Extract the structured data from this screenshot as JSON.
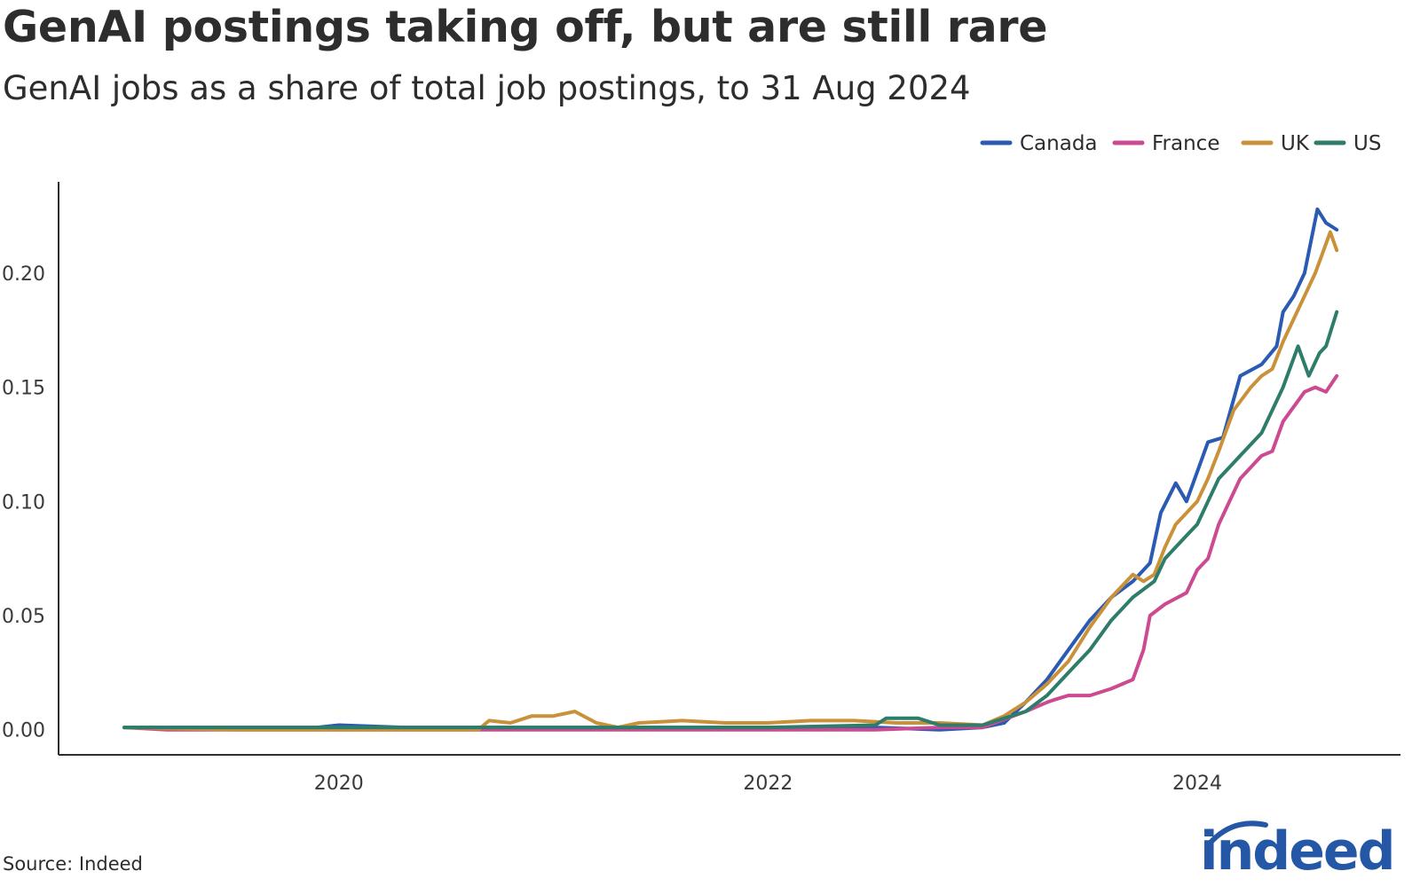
{
  "title": "GenAI postings taking off, but are still rare",
  "subtitle": "GenAI jobs as a share of total job postings, to 31 Aug 2024",
  "source": "Source: Indeed",
  "logo_text": "indeed",
  "colors": {
    "Canada": "#2a5ab1",
    "France": "#cc4a91",
    "UK": "#c9923a",
    "US": "#2e7d6a",
    "axis": "#2d2d2d",
    "brand": "#2557a7"
  },
  "chart_data": {
    "type": "line",
    "title": "GenAI postings taking off, but are still rare",
    "subtitle": "GenAI jobs as a share of total job postings, to 31 Aug 2024",
    "xlabel": "",
    "ylabel": "",
    "x_range": [
      2019.0,
      2024.67
    ],
    "ylim": [
      -0.011,
      0.24
    ],
    "y_ticks": [
      0.0,
      0.05,
      0.1,
      0.15,
      0.2
    ],
    "y_tick_labels": [
      "0.00",
      "0.05",
      "0.10",
      "0.15",
      "0.20"
    ],
    "x_ticks": [
      2020,
      2022,
      2024
    ],
    "x_tick_labels": [
      "2020",
      "2022",
      "2024"
    ],
    "legend_position": "top-right",
    "grid": false,
    "series": [
      {
        "name": "Canada",
        "points": [
          [
            2019.0,
            0.001
          ],
          [
            2019.5,
            0.001
          ],
          [
            2019.9,
            0.001
          ],
          [
            2020.0,
            0.002
          ],
          [
            2020.3,
            0.001
          ],
          [
            2020.6,
            0.001
          ],
          [
            2021.0,
            0.001
          ],
          [
            2021.5,
            0.001
          ],
          [
            2022.0,
            0.001
          ],
          [
            2022.5,
            0.001
          ],
          [
            2022.8,
            0.0
          ],
          [
            2023.0,
            0.001
          ],
          [
            2023.1,
            0.003
          ],
          [
            2023.2,
            0.012
          ],
          [
            2023.3,
            0.022
          ],
          [
            2023.4,
            0.035
          ],
          [
            2023.5,
            0.048
          ],
          [
            2023.6,
            0.058
          ],
          [
            2023.7,
            0.065
          ],
          [
            2023.78,
            0.073
          ],
          [
            2023.83,
            0.095
          ],
          [
            2023.9,
            0.108
          ],
          [
            2023.95,
            0.1
          ],
          [
            2024.0,
            0.113
          ],
          [
            2024.05,
            0.126
          ],
          [
            2024.12,
            0.128
          ],
          [
            2024.2,
            0.155
          ],
          [
            2024.3,
            0.16
          ],
          [
            2024.37,
            0.168
          ],
          [
            2024.4,
            0.183
          ],
          [
            2024.45,
            0.19
          ],
          [
            2024.5,
            0.2
          ],
          [
            2024.56,
            0.228
          ],
          [
            2024.6,
            0.222
          ],
          [
            2024.65,
            0.219
          ]
        ]
      },
      {
        "name": "France",
        "points": [
          [
            2019.0,
            0.001
          ],
          [
            2019.2,
            0.0
          ],
          [
            2019.5,
            0.0
          ],
          [
            2020.0,
            0.0
          ],
          [
            2020.5,
            0.0
          ],
          [
            2021.0,
            0.0
          ],
          [
            2021.5,
            0.0
          ],
          [
            2022.0,
            0.0
          ],
          [
            2022.5,
            0.0
          ],
          [
            2022.8,
            0.001
          ],
          [
            2023.0,
            0.001
          ],
          [
            2023.2,
            0.008
          ],
          [
            2023.3,
            0.012
          ],
          [
            2023.33,
            0.013
          ],
          [
            2023.4,
            0.015
          ],
          [
            2023.5,
            0.015
          ],
          [
            2023.6,
            0.018
          ],
          [
            2023.7,
            0.022
          ],
          [
            2023.75,
            0.035
          ],
          [
            2023.78,
            0.05
          ],
          [
            2023.85,
            0.055
          ],
          [
            2023.95,
            0.06
          ],
          [
            2024.0,
            0.07
          ],
          [
            2024.05,
            0.075
          ],
          [
            2024.1,
            0.09
          ],
          [
            2024.2,
            0.11
          ],
          [
            2024.3,
            0.12
          ],
          [
            2024.35,
            0.122
          ],
          [
            2024.4,
            0.135
          ],
          [
            2024.5,
            0.148
          ],
          [
            2024.55,
            0.15
          ],
          [
            2024.6,
            0.148
          ],
          [
            2024.65,
            0.155
          ]
        ]
      },
      {
        "name": "UK",
        "points": [
          [
            2019.0,
            0.001
          ],
          [
            2019.5,
            0.0
          ],
          [
            2020.0,
            0.0
          ],
          [
            2020.4,
            0.0
          ],
          [
            2020.65,
            0.0
          ],
          [
            2020.7,
            0.004
          ],
          [
            2020.8,
            0.003
          ],
          [
            2020.9,
            0.006
          ],
          [
            2021.0,
            0.006
          ],
          [
            2021.1,
            0.008
          ],
          [
            2021.2,
            0.003
          ],
          [
            2021.3,
            0.001
          ],
          [
            2021.4,
            0.003
          ],
          [
            2021.6,
            0.004
          ],
          [
            2021.8,
            0.003
          ],
          [
            2022.0,
            0.003
          ],
          [
            2022.2,
            0.004
          ],
          [
            2022.4,
            0.004
          ],
          [
            2022.6,
            0.003
          ],
          [
            2022.8,
            0.003
          ],
          [
            2023.0,
            0.002
          ],
          [
            2023.1,
            0.006
          ],
          [
            2023.2,
            0.012
          ],
          [
            2023.3,
            0.02
          ],
          [
            2023.4,
            0.03
          ],
          [
            2023.5,
            0.045
          ],
          [
            2023.6,
            0.058
          ],
          [
            2023.7,
            0.068
          ],
          [
            2023.75,
            0.065
          ],
          [
            2023.8,
            0.068
          ],
          [
            2023.85,
            0.08
          ],
          [
            2023.9,
            0.09
          ],
          [
            2023.95,
            0.095
          ],
          [
            2024.0,
            0.1
          ],
          [
            2024.05,
            0.11
          ],
          [
            2024.1,
            0.122
          ],
          [
            2024.17,
            0.14
          ],
          [
            2024.25,
            0.15
          ],
          [
            2024.3,
            0.155
          ],
          [
            2024.35,
            0.158
          ],
          [
            2024.4,
            0.17
          ],
          [
            2024.45,
            0.18
          ],
          [
            2024.5,
            0.19
          ],
          [
            2024.55,
            0.2
          ],
          [
            2024.62,
            0.218
          ],
          [
            2024.65,
            0.21
          ]
        ]
      },
      {
        "name": "US",
        "points": [
          [
            2019.0,
            0.001
          ],
          [
            2019.5,
            0.001
          ],
          [
            2020.0,
            0.001
          ],
          [
            2020.5,
            0.001
          ],
          [
            2021.0,
            0.001
          ],
          [
            2021.5,
            0.001
          ],
          [
            2022.0,
            0.001
          ],
          [
            2022.5,
            0.002
          ],
          [
            2022.55,
            0.005
          ],
          [
            2022.7,
            0.005
          ],
          [
            2022.8,
            0.002
          ],
          [
            2023.0,
            0.002
          ],
          [
            2023.1,
            0.005
          ],
          [
            2023.2,
            0.008
          ],
          [
            2023.3,
            0.015
          ],
          [
            2023.4,
            0.025
          ],
          [
            2023.5,
            0.035
          ],
          [
            2023.6,
            0.048
          ],
          [
            2023.7,
            0.058
          ],
          [
            2023.8,
            0.065
          ],
          [
            2023.85,
            0.075
          ],
          [
            2023.9,
            0.08
          ],
          [
            2023.95,
            0.085
          ],
          [
            2024.0,
            0.09
          ],
          [
            2024.05,
            0.1
          ],
          [
            2024.1,
            0.11
          ],
          [
            2024.15,
            0.115
          ],
          [
            2024.2,
            0.12
          ],
          [
            2024.25,
            0.125
          ],
          [
            2024.3,
            0.13
          ],
          [
            2024.35,
            0.14
          ],
          [
            2024.4,
            0.15
          ],
          [
            2024.47,
            0.168
          ],
          [
            2024.52,
            0.155
          ],
          [
            2024.57,
            0.165
          ],
          [
            2024.6,
            0.168
          ],
          [
            2024.65,
            0.183
          ]
        ]
      }
    ]
  }
}
